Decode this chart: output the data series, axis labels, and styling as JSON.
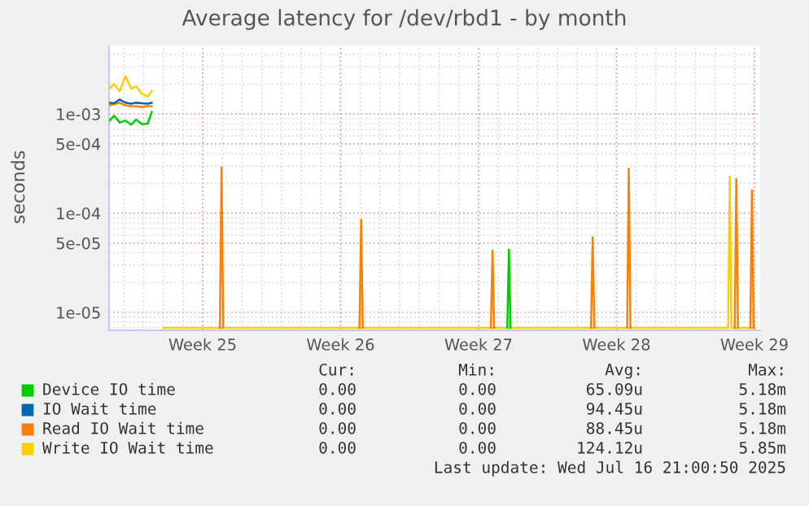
{
  "chart_data": {
    "type": "line",
    "title": "Average latency for /dev/rbd1 - by month",
    "ylabel": "seconds",
    "log": "y",
    "grid": true,
    "legend": "bottom",
    "marker": "none",
    "line_style": "solid",
    "xlim": [
      "2025-06-11T06:00",
      "2025-07-14T07:00"
    ],
    "xticks": [
      {
        "value": "2025-06-16",
        "label": "Week 25"
      },
      {
        "value": "2025-06-23",
        "label": "Week 26"
      },
      {
        "value": "2025-06-30",
        "label": "Week 27"
      },
      {
        "value": "2025-07-07",
        "label": "Week 28"
      },
      {
        "value": "2025-07-14",
        "label": "Week 29"
      }
    ],
    "ylim": [
      6.6e-06,
      0.0049
    ],
    "yticks": [
      {
        "value": 1e-05,
        "label": "1e-05"
      },
      {
        "value": 5e-05,
        "label": "5e-05"
      },
      {
        "value": 0.0001,
        "label": "1e-04"
      },
      {
        "value": 0.0005,
        "label": "5e-04"
      },
      {
        "value": 0.001,
        "label": "1e-03"
      }
    ],
    "series": [
      {
        "name": "Device IO time",
        "color": "#00cc00",
        "x": [
          "2025-06-11T06:00",
          "2025-06-11T12:00",
          "2025-06-11T19:00",
          "2025-06-12T02:00",
          "2025-06-12T09:00",
          "2025-06-12T15:00",
          "2025-06-12T22:00",
          "2025-06-13T05:00",
          "2025-06-13T10:00",
          "2025-06-13T17:00",
          "2025-07-01T11:00",
          "2025-07-01T13:00",
          "2025-07-01T15:00"
        ],
        "values": [
          0.00085,
          0.00096,
          0.00082,
          0.00086,
          0.00078,
          0.00088,
          0.00079,
          0.0008,
          0.00105,
          null,
          7e-06,
          4.3e-05,
          7e-06
        ]
      },
      {
        "name": "IO Wait time",
        "color": "#0066b3",
        "x": [
          "2025-06-11T06:00",
          "2025-06-11T12:00",
          "2025-06-11T19:00",
          "2025-06-12T02:00",
          "2025-06-12T09:00",
          "2025-06-12T15:00",
          "2025-06-12T22:00",
          "2025-06-13T05:00",
          "2025-06-13T10:00"
        ],
        "values": [
          0.0013,
          0.00128,
          0.0014,
          0.0013,
          0.00127,
          0.0013,
          0.00128,
          0.00127,
          0.0013
        ]
      },
      {
        "name": "Read IO Wait time",
        "color": "#ff8000",
        "x": [
          "2025-06-11T06:00",
          "2025-06-11T12:00",
          "2025-06-11T19:00",
          "2025-06-12T02:00",
          "2025-06-12T09:00",
          "2025-06-12T15:00",
          "2025-06-12T22:00",
          "2025-06-13T05:00",
          "2025-06-13T10:00",
          "2025-06-13T17:00",
          "2025-06-16T21:00",
          "2025-06-16T23:00",
          "2025-06-17T01:00",
          "2025-06-20T00:00",
          "2025-06-23T23:00",
          "2025-06-24T01:00",
          "2025-06-24T03:00",
          "2025-06-27T00:00",
          "2025-06-30T15:00",
          "2025-06-30T17:00",
          "2025-06-30T19:00",
          "2025-07-03T00:00",
          "2025-07-05T17:00",
          "2025-07-05T19:00",
          "2025-07-05T21:00",
          "2025-07-06T12:00",
          "2025-07-07T13:00",
          "2025-07-07T15:00",
          "2025-07-07T17:00",
          "2025-07-10T00:00",
          "2025-07-13T00:00",
          "2025-07-13T02:00",
          "2025-07-13T04:00",
          "2025-07-13T12:00",
          "2025-07-13T19:00",
          "2025-07-13T21:00",
          "2025-07-13T23:00"
        ],
        "values": [
          0.00122,
          0.00125,
          0.0013,
          0.00122,
          0.0012,
          0.0012,
          0.00118,
          0.0012,
          0.0012,
          null,
          7e-06,
          0.00029,
          7e-06,
          null,
          7e-06,
          8.6e-05,
          7e-06,
          null,
          7e-06,
          4.2e-05,
          7e-06,
          null,
          7e-06,
          5.7e-05,
          7e-06,
          null,
          7e-06,
          0.00028,
          7e-06,
          null,
          7e-06,
          0.00022,
          7e-06,
          null,
          7e-06,
          0.00017,
          7e-06
        ]
      },
      {
        "name": "Write IO Wait time",
        "color": "#ffcc00",
        "x": [
          "2025-06-11T06:00",
          "2025-06-11T12:00",
          "2025-06-11T19:00",
          "2025-06-12T02:00",
          "2025-06-12T09:00",
          "2025-06-12T15:00",
          "2025-06-12T22:00",
          "2025-06-13T05:00",
          "2025-06-13T10:00",
          "2025-06-13T17:00",
          "2025-06-14T00:00",
          "2025-07-12T16:00",
          "2025-07-12T18:00",
          "2025-07-12T20:00",
          "2025-07-14T00:00"
        ],
        "values": [
          0.0018,
          0.002,
          0.0017,
          0.0024,
          0.0018,
          0.0019,
          0.0016,
          0.0015,
          0.0017,
          null,
          7e-06,
          7e-06,
          0.000235,
          7e-06,
          7e-06
        ]
      }
    ],
    "annotations": [
      "Cur:",
      "Min:",
      "Avg:",
      "Max:",
      "0.00",
      "0.00",
      "65.09u",
      "5.18m",
      "0.00",
      "0.00",
      "94.45u",
      "5.18m",
      "0.00",
      "0.00",
      "88.45u",
      "5.18m",
      "0.00",
      "0.00",
      "124.12u",
      "5.85m",
      "Last update: Wed Jul 16 21:00:50 2025"
    ]
  }
}
